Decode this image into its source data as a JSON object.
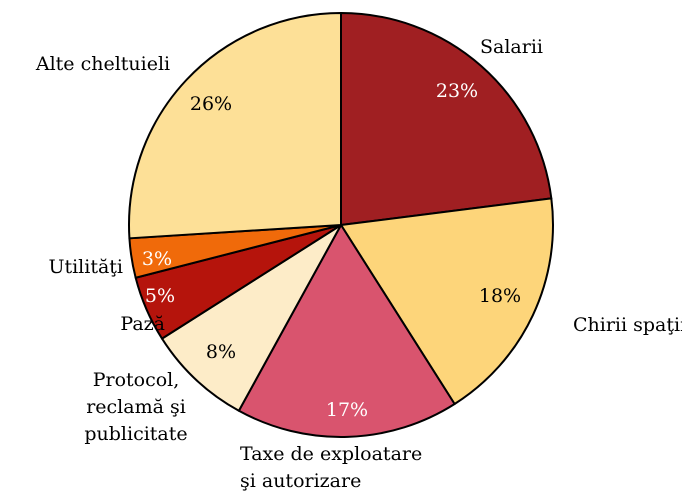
{
  "chart_data": {
    "type": "pie",
    "categories": [
      "Salarii",
      "Chirii spaţii",
      "Taxe de exploatare\nşi autorizare",
      "Protocol,\nreclamă şi\npublicitate",
      "Pază",
      "Utilităţi",
      "Alte cheltuieli"
    ],
    "values": [
      23,
      18,
      17,
      8,
      5,
      3,
      26
    ],
    "value_labels": [
      "23%",
      "18%",
      "17%",
      "8%",
      "5%",
      "3%",
      "26%"
    ],
    "colors": [
      "#a01f22",
      "#fdd57a",
      "#d9546e",
      "#fdecc8",
      "#b5140c",
      "#f06a0a",
      "#fde097"
    ]
  }
}
